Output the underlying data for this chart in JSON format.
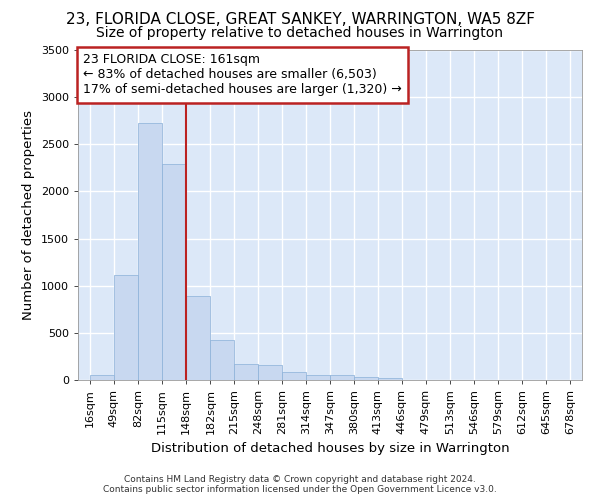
{
  "title": "23, FLORIDA CLOSE, GREAT SANKEY, WARRINGTON, WA5 8ZF",
  "subtitle": "Size of property relative to detached houses in Warrington",
  "xlabel": "Distribution of detached houses by size in Warrington",
  "ylabel": "Number of detached properties",
  "footer_line1": "Contains HM Land Registry data © Crown copyright and database right 2024.",
  "footer_line2": "Contains public sector information licensed under the Open Government Licence v3.0.",
  "property_label": "23 FLORIDA CLOSE: 161sqm",
  "annotation_line1": "← 83% of detached houses are smaller (6,503)",
  "annotation_line2": "17% of semi-detached houses are larger (1,320) →",
  "vline_x_index": 4,
  "bar_color": "#c8d8f0",
  "bar_edge_color": "#8ab0d8",
  "vline_color": "#bb2222",
  "annotation_box_edge_color": "#bb2222",
  "bin_starts": [
    16,
    49,
    82,
    115,
    148,
    182,
    215,
    248,
    281,
    314,
    347,
    380,
    413,
    446,
    479,
    513,
    546,
    579,
    612,
    645
  ],
  "bin_labels": [
    "16sqm",
    "49sqm",
    "82sqm",
    "115sqm",
    "148sqm",
    "182sqm",
    "215sqm",
    "248sqm",
    "281sqm",
    "314sqm",
    "347sqm",
    "380sqm",
    "413sqm",
    "446sqm",
    "479sqm",
    "513sqm",
    "546sqm",
    "579sqm",
    "612sqm",
    "645sqm",
    "678sqm"
  ],
  "bar_heights": [
    55,
    1110,
    2730,
    2290,
    890,
    420,
    165,
    155,
    90,
    55,
    50,
    30,
    25,
    0,
    0,
    0,
    0,
    0,
    0,
    0
  ],
  "ylim": [
    0,
    3500
  ],
  "yticks": [
    0,
    500,
    1000,
    1500,
    2000,
    2500,
    3000,
    3500
  ],
  "plot_bg_color": "#dce8f8",
  "fig_bg_color": "#ffffff",
  "grid_color": "#ffffff",
  "title_fontsize": 11,
  "subtitle_fontsize": 10,
  "axis_label_fontsize": 9.5,
  "tick_fontsize": 8,
  "annotation_fontsize": 9
}
